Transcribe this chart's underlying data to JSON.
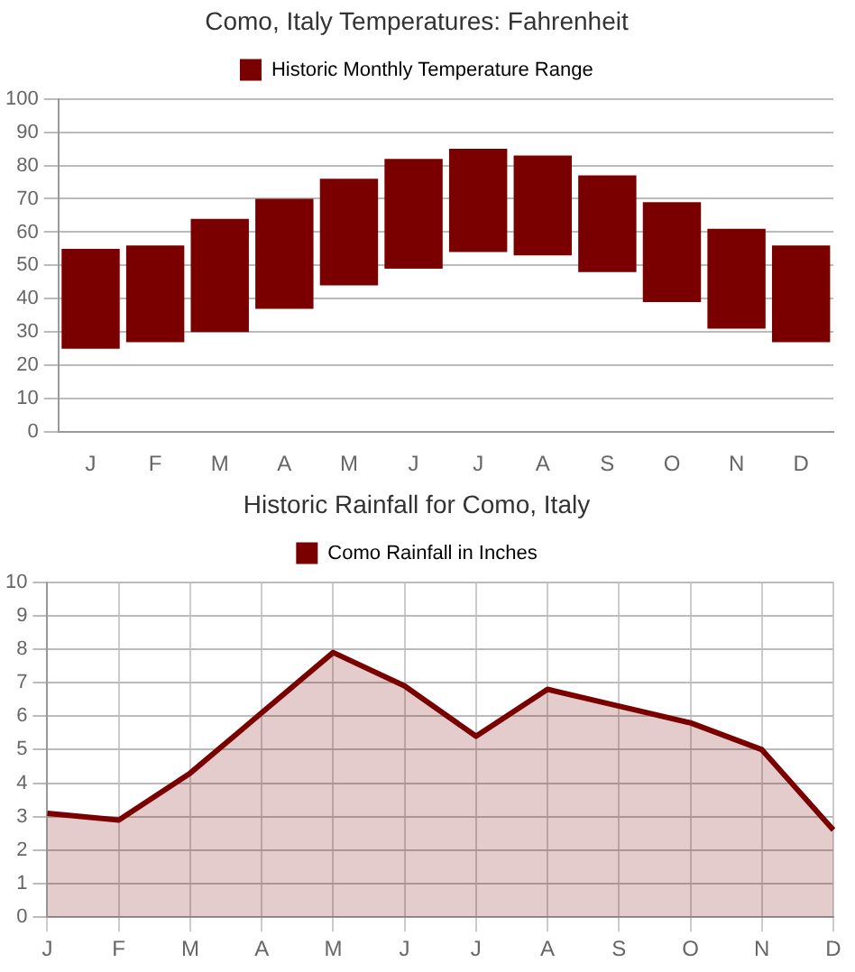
{
  "chart_data": [
    {
      "type": "bar",
      "title": "Como, Italy Temperatures: Fahrenheit",
      "categories": [
        "J",
        "F",
        "M",
        "A",
        "M",
        "J",
        "J",
        "A",
        "S",
        "O",
        "N",
        "D"
      ],
      "series": [
        {
          "name": "Historic Monthly Temperature Range",
          "color": "#7a0000",
          "values": [
            30,
            29,
            34,
            33,
            32,
            33,
            31,
            30,
            29,
            30,
            30,
            29
          ],
          "base": [
            25,
            27,
            30,
            37,
            44,
            49,
            54,
            53,
            48,
            39,
            31,
            27
          ]
        }
      ],
      "ylim": [
        0,
        100
      ],
      "yticks": [
        0,
        10,
        20,
        30,
        40,
        50,
        60,
        70,
        80,
        90,
        100
      ],
      "grid": "y",
      "legend": "top"
    },
    {
      "type": "area",
      "title": "Historic Rainfall for Como, Italy",
      "categories": [
        "J",
        "F",
        "M",
        "A",
        "M",
        "J",
        "J",
        "A",
        "S",
        "O",
        "N",
        "D"
      ],
      "series": [
        {
          "name": "Como Rainfall in Inches",
          "color": "#7a0000",
          "values": [
            3.1,
            2.9,
            4.3,
            6.1,
            7.9,
            6.9,
            5.4,
            6.8,
            6.3,
            5.8,
            5.0,
            2.6
          ]
        }
      ],
      "ylim": [
        0,
        10
      ],
      "yticks": [
        0,
        1,
        2,
        3,
        4,
        5,
        6,
        7,
        8,
        9,
        10
      ],
      "grid": true,
      "legend": "top",
      "marker": "none"
    }
  ]
}
